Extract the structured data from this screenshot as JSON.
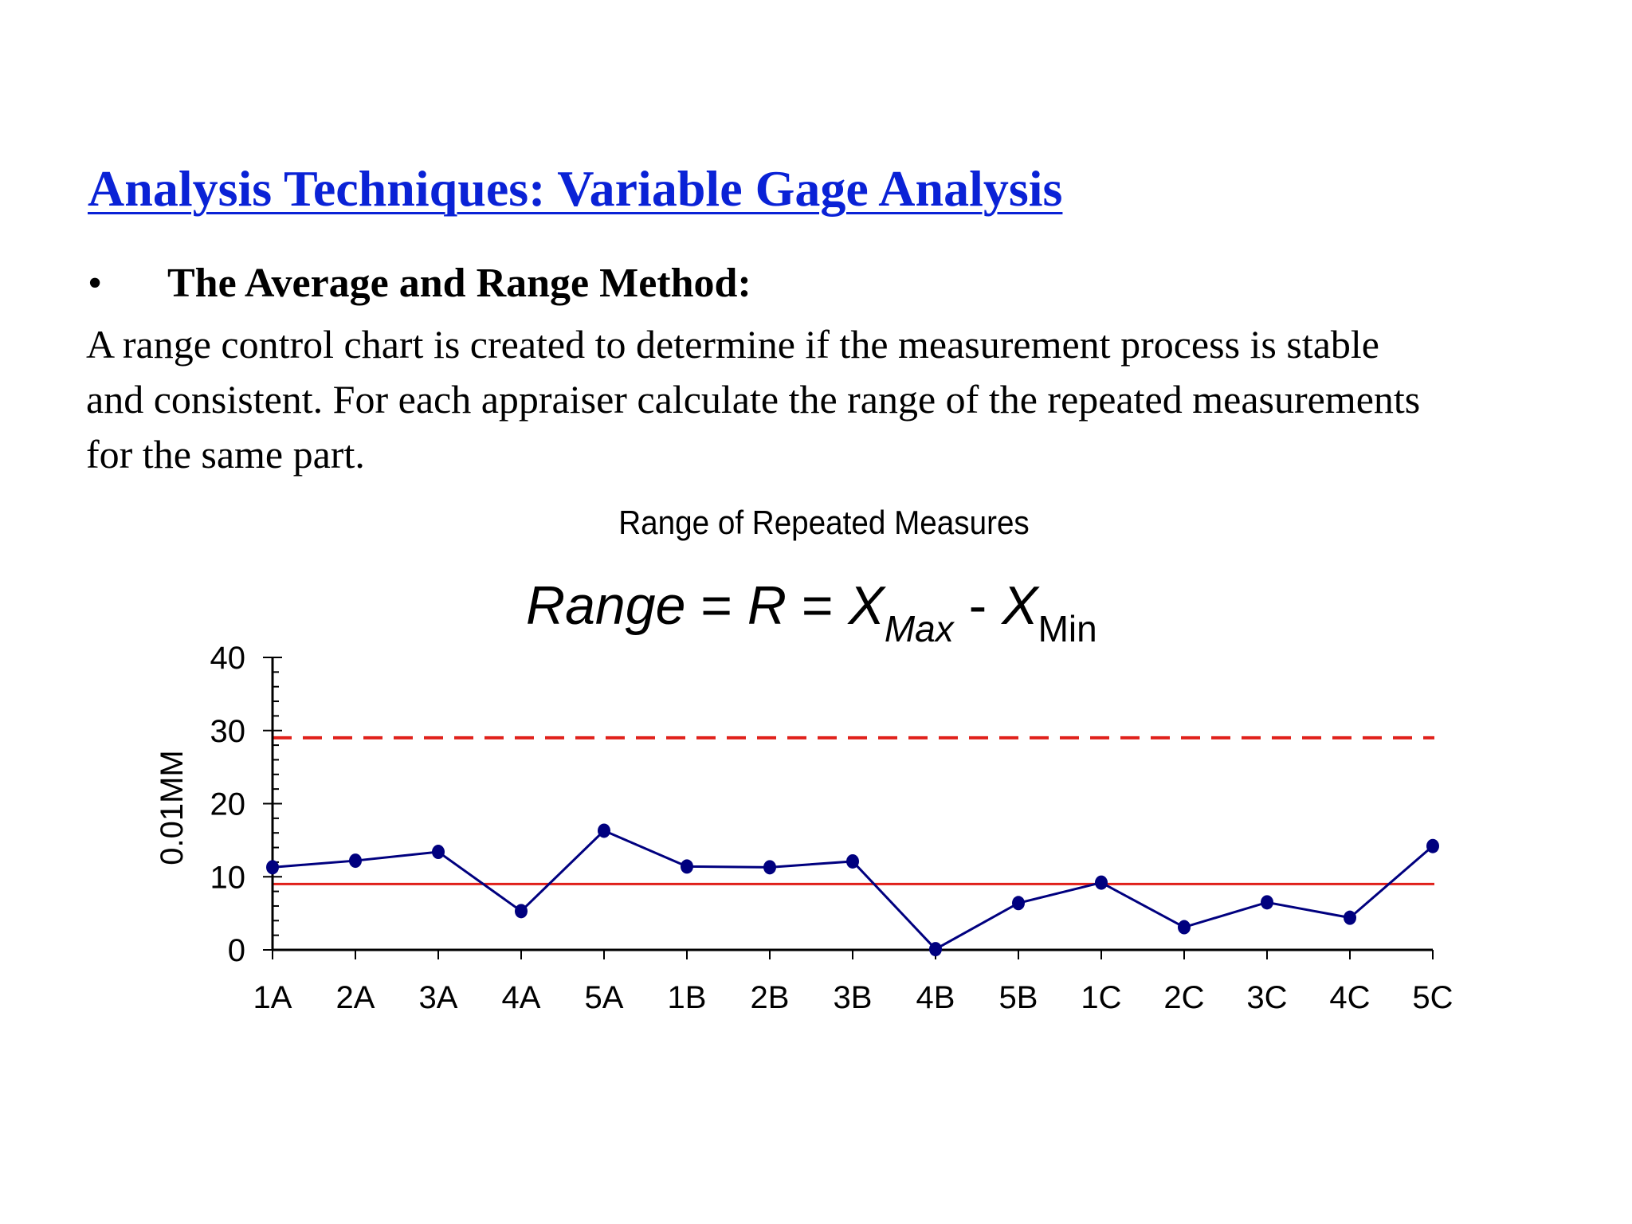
{
  "slide": {
    "title": "Analysis Techniques: Variable Gage Analysis",
    "bullet": "•",
    "heading": "The Average and Range Method:",
    "body_lines": [
      "A range control chart is created to determine if the measurement process is stable",
      "and consistent.  For each appraiser calculate the range of the repeated measurements",
      "for the same part."
    ]
  },
  "formula": {
    "range_word": "Range",
    "eq1": " = ",
    "r": "R",
    "eq2": " = ",
    "x1": "X",
    "sub_max": "Max",
    "minus": " - ",
    "x2": "X",
    "sub_min": "Min"
  },
  "chart_data": {
    "type": "line",
    "title": "Range of Repeated Measures",
    "xlabel": "",
    "ylabel": "0.01MM",
    "categories": [
      "1A",
      "2A",
      "3A",
      "4A",
      "5A",
      "1B",
      "2B",
      "3B",
      "4B",
      "5B",
      "1C",
      "2C",
      "3C",
      "4C",
      "5C"
    ],
    "series": [
      {
        "values": [
          11.3,
          12.2,
          13.4,
          5.3,
          16.3,
          11.4,
          11.3,
          12.1,
          0.1,
          6.4,
          9.2,
          3.1,
          6.5,
          4.4,
          14.2
        ],
        "color": "#00007f"
      }
    ],
    "reference_lines": [
      {
        "value": 29,
        "style": "dashed",
        "color": "#e0201a"
      },
      {
        "value": 9,
        "style": "solid",
        "color": "#e0201a"
      }
    ],
    "yticks": [
      0,
      10,
      20,
      30,
      40
    ],
    "ylim": [
      0,
      40
    ],
    "grid": false
  }
}
